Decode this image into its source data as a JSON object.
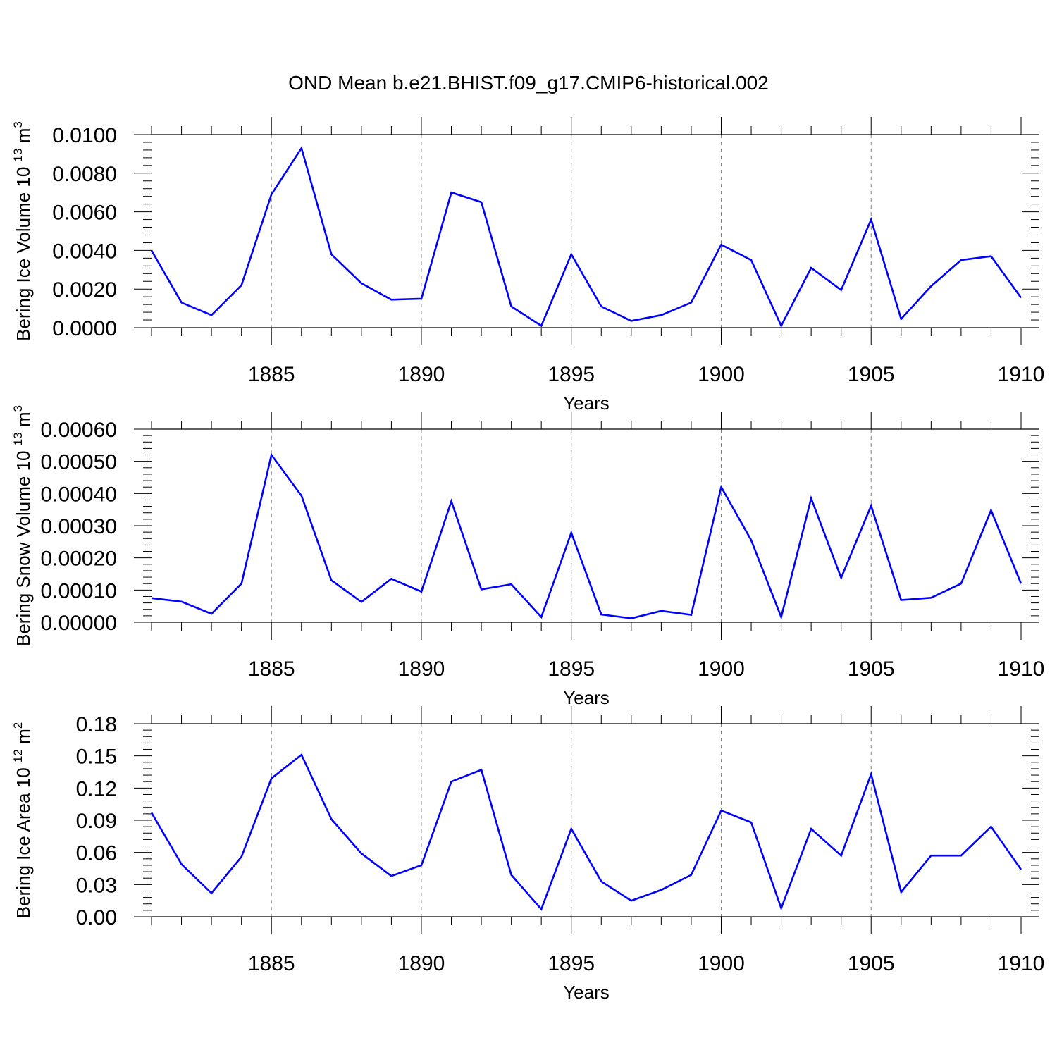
{
  "title": "OND Mean b.e21.BHIST.f09_g17.CMIP6-historical.002",
  "line_color": "#0000ff",
  "chart_data": [
    {
      "type": "line",
      "xlabel": "Years",
      "ylabel": "Bering Ice Volume 10",
      "ylabel_exp": "13",
      "ylabel_unit": "m",
      "ylabel_unit_exp": "3",
      "xlim": [
        1881,
        1910
      ],
      "ylim": [
        0,
        0.01
      ],
      "x_ticks": [
        1885,
        1890,
        1895,
        1900,
        1905,
        1910
      ],
      "x_tick_labels": [
        "1885",
        "1890",
        "1895",
        "1900",
        "1905",
        "1910"
      ],
      "y_ticks": [
        0,
        0.002,
        0.004,
        0.006,
        0.008,
        0.01
      ],
      "y_tick_labels": [
        "0.0000",
        "0.0020",
        "0.0040",
        "0.0060",
        "0.0080",
        "0.0100"
      ],
      "x_gridlines": true,
      "x": [
        1881,
        1882,
        1883,
        1884,
        1885,
        1886,
        1887,
        1888,
        1889,
        1890,
        1891,
        1892,
        1893,
        1894,
        1895,
        1896,
        1897,
        1898,
        1899,
        1900,
        1901,
        1902,
        1903,
        1904,
        1905,
        1906,
        1907,
        1908,
        1909,
        1910
      ],
      "values": [
        0.004,
        0.0013,
        0.00065,
        0.0022,
        0.0069,
        0.0093,
        0.0038,
        0.0023,
        0.00145,
        0.0015,
        0.007,
        0.0065,
        0.0011,
        0.0001,
        0.0038,
        0.0011,
        0.00035,
        0.00065,
        0.0013,
        0.0043,
        0.0035,
        0.0001,
        0.0031,
        0.00195,
        0.0056,
        0.00045,
        0.00215,
        0.0035,
        0.0037,
        0.00155
      ]
    },
    {
      "type": "line",
      "xlabel": "Years",
      "ylabel": "Bering Snow Volume 10",
      "ylabel_exp": "13",
      "ylabel_unit": "m",
      "ylabel_unit_exp": "3",
      "xlim": [
        1881,
        1910
      ],
      "ylim": [
        0,
        0.0006
      ],
      "x_ticks": [
        1885,
        1890,
        1895,
        1900,
        1905,
        1910
      ],
      "x_tick_labels": [
        "1885",
        "1890",
        "1895",
        "1900",
        "1905",
        "1910"
      ],
      "y_ticks": [
        0,
        0.0001,
        0.0002,
        0.0003,
        0.0004,
        0.0005,
        0.0006
      ],
      "y_tick_labels": [
        "0.00000",
        "0.00010",
        "0.00020",
        "0.00030",
        "0.00040",
        "0.00050",
        "0.00060"
      ],
      "x_gridlines": true,
      "x": [
        1881,
        1882,
        1883,
        1884,
        1885,
        1886,
        1887,
        1888,
        1889,
        1890,
        1891,
        1892,
        1893,
        1894,
        1895,
        1896,
        1897,
        1898,
        1899,
        1900,
        1901,
        1902,
        1903,
        1904,
        1905,
        1906,
        1907,
        1908,
        1909,
        1910
      ],
      "values": [
        7.5e-05,
        6.4e-05,
        2.6e-05,
        0.00012,
        0.00052,
        0.000393,
        0.00013,
        6.3e-05,
        0.000135,
        9.5e-05,
        0.000376,
        0.000102,
        0.000118,
        1.6e-05,
        0.000278,
        2.4e-05,
        1.2e-05,
        3.5e-05,
        2.3e-05,
        0.00042,
        0.000255,
        1.6e-05,
        0.000385,
        0.000138,
        0.000362,
        6.9e-05,
        7.6e-05,
        0.00012,
        0.000348,
        0.00012
      ]
    },
    {
      "type": "line",
      "xlabel": "Years",
      "ylabel": "Bering Ice Area 10",
      "ylabel_exp": "12",
      "ylabel_unit": "m",
      "ylabel_unit_exp": "2",
      "xlim": [
        1881,
        1910
      ],
      "ylim": [
        0,
        0.18
      ],
      "x_ticks": [
        1885,
        1890,
        1895,
        1900,
        1905,
        1910
      ],
      "x_tick_labels": [
        "1885",
        "1890",
        "1895",
        "1900",
        "1905",
        "1910"
      ],
      "y_ticks": [
        0,
        0.03,
        0.06,
        0.09,
        0.12,
        0.15,
        0.18
      ],
      "y_tick_labels": [
        "0.00",
        "0.03",
        "0.06",
        "0.09",
        "0.12",
        "0.15",
        "0.18"
      ],
      "x_gridlines": true,
      "x": [
        1881,
        1882,
        1883,
        1884,
        1885,
        1886,
        1887,
        1888,
        1889,
        1890,
        1891,
        1892,
        1893,
        1894,
        1895,
        1896,
        1897,
        1898,
        1899,
        1900,
        1901,
        1902,
        1903,
        1904,
        1905,
        1906,
        1907,
        1908,
        1909,
        1910
      ],
      "values": [
        0.097,
        0.049,
        0.022,
        0.056,
        0.129,
        0.151,
        0.091,
        0.059,
        0.038,
        0.048,
        0.126,
        0.137,
        0.039,
        0.007,
        0.082,
        0.033,
        0.015,
        0.025,
        0.039,
        0.099,
        0.088,
        0.008,
        0.082,
        0.057,
        0.133,
        0.023,
        0.057,
        0.057,
        0.084,
        0.044
      ]
    }
  ]
}
